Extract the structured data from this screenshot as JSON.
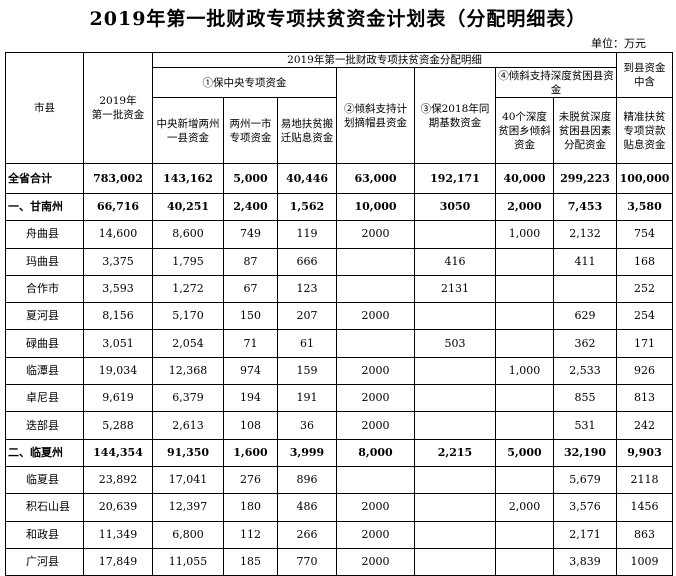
{
  "title": "2019年第一批财政专项扶贫资金计划表（分配明细表）",
  "unit": "单位：万元",
  "headers": {
    "county": "市县",
    "first_batch": "2019年\n第一批资金",
    "alloc_detail": "2019年第一批财政专项扶贫资金分配明细",
    "g1": "①保中央专项资金",
    "g1a": "中央新增两州一县资金",
    "g1b": "两州一市专项资金",
    "g1c": "易地扶贫搬迁贴息资金",
    "g2": "②倾斜支持计划摘帽县资金",
    "g3": "③保2018年同期基数资金",
    "g4": "④倾斜支持深度贫困县资金",
    "g4a": "40个深度贫困乡倾斜资金",
    "g4b": "未脱贫深度贫困县因素分配资金",
    "g5": "到县资金中含",
    "g5a": "精准扶贫专项贷款贴息资金"
  },
  "rows": [
    {
      "type": "prov",
      "name": "全省合计",
      "total": "783,002",
      "c1": "143,162",
      "c2": "5,000",
      "c3": "40,446",
      "c4": "63,000",
      "c5": "192,171",
      "c6": "40,000",
      "c7": "299,223",
      "c8": "100,000"
    },
    {
      "type": "city",
      "name": "一、甘南州",
      "total": "66,716",
      "c1": "40,251",
      "c2": "2,400",
      "c3": "1,562",
      "c4": "10,000",
      "c5": "3050",
      "c6": "2,000",
      "c7": "7,453",
      "c8": "3,580"
    },
    {
      "type": "county",
      "name": "舟曲县",
      "total": "14,600",
      "c1": "8,600",
      "c2": "749",
      "c3": "119",
      "c4": "2000",
      "c5": "",
      "c6": "1,000",
      "c7": "2,132",
      "c8": "754"
    },
    {
      "type": "county",
      "name": "玛曲县",
      "total": "3,375",
      "c1": "1,795",
      "c2": "87",
      "c3": "666",
      "c4": "",
      "c5": "416",
      "c6": "",
      "c7": "411",
      "c8": "168"
    },
    {
      "type": "county",
      "name": "合作市",
      "total": "3,593",
      "c1": "1,272",
      "c2": "67",
      "c3": "123",
      "c4": "",
      "c5": "2131",
      "c6": "",
      "c7": "",
      "c8": "252"
    },
    {
      "type": "county",
      "name": "夏河县",
      "total": "8,156",
      "c1": "5,170",
      "c2": "150",
      "c3": "207",
      "c4": "2000",
      "c5": "",
      "c6": "",
      "c7": "629",
      "c8": "254"
    },
    {
      "type": "county",
      "name": "碌曲县",
      "total": "3,051",
      "c1": "2,054",
      "c2": "71",
      "c3": "61",
      "c4": "",
      "c5": "503",
      "c6": "",
      "c7": "362",
      "c8": "171"
    },
    {
      "type": "county",
      "name": "临潭县",
      "total": "19,034",
      "c1": "12,368",
      "c2": "974",
      "c3": "159",
      "c4": "2000",
      "c5": "",
      "c6": "1,000",
      "c7": "2,533",
      "c8": "926"
    },
    {
      "type": "county",
      "name": "卓尼县",
      "total": "9,619",
      "c1": "6,379",
      "c2": "194",
      "c3": "191",
      "c4": "2000",
      "c5": "",
      "c6": "",
      "c7": "855",
      "c8": "813"
    },
    {
      "type": "county",
      "name": "迭部县",
      "total": "5,288",
      "c1": "2,613",
      "c2": "108",
      "c3": "36",
      "c4": "2000",
      "c5": "",
      "c6": "",
      "c7": "531",
      "c8": "242"
    },
    {
      "type": "city",
      "name": "二、临夏州",
      "total": "144,354",
      "c1": "91,350",
      "c2": "1,600",
      "c3": "3,999",
      "c4": "8,000",
      "c5": "2,215",
      "c6": "5,000",
      "c7": "32,190",
      "c8": "9,903"
    },
    {
      "type": "county",
      "name": "临夏县",
      "total": "23,892",
      "c1": "17,041",
      "c2": "276",
      "c3": "896",
      "c4": "",
      "c5": "",
      "c6": "",
      "c7": "5,679",
      "c8": "2118"
    },
    {
      "type": "county",
      "name": "积石山县",
      "total": "20,639",
      "c1": "12,397",
      "c2": "180",
      "c3": "486",
      "c4": "2000",
      "c5": "",
      "c6": "2,000",
      "c7": "3,576",
      "c8": "1456"
    },
    {
      "type": "county",
      "name": "和政县",
      "total": "11,349",
      "c1": "6,800",
      "c2": "112",
      "c3": "266",
      "c4": "2000",
      "c5": "",
      "c6": "",
      "c7": "2,171",
      "c8": "863"
    },
    {
      "type": "county",
      "name": "广河县",
      "total": "17,849",
      "c1": "11,055",
      "c2": "185",
      "c3": "770",
      "c4": "2000",
      "c5": "",
      "c6": "",
      "c7": "3,839",
      "c8": "1009"
    }
  ]
}
